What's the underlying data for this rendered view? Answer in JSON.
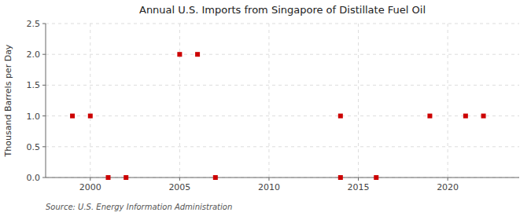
{
  "chart_data": {
    "type": "scatter",
    "title": "Annual U.S. Imports from Singapore of Distillate Fuel Oil",
    "y_label": "Thousand Barrels per Day",
    "annotations": [
      "Source: U.S. Energy Information Administration"
    ],
    "x": [
      1999,
      2000,
      2001,
      2002,
      2005,
      2006,
      2007,
      2014,
      2014,
      2016,
      2019,
      2021,
      2022
    ],
    "values": [
      1.0,
      1.0,
      0.0,
      0.0,
      2.0,
      2.0,
      0.0,
      1.0,
      0.0,
      0.0,
      1.0,
      1.0,
      1.0
    ],
    "color": "#cc0000",
    "marker": "square",
    "xlim": [
      1997.5,
      2024
    ],
    "ylim": [
      0.0,
      2.5
    ],
    "xticks": [
      2000,
      2005,
      2010,
      2015,
      2020
    ],
    "yticks": [
      {
        "value": 0.0,
        "label": "0.0"
      },
      0.5,
      {
        "value": 1.0,
        "label": "1.0"
      },
      1.5,
      {
        "value": 2.0,
        "label": "2.0"
      },
      2.5
    ],
    "grid": true
  }
}
